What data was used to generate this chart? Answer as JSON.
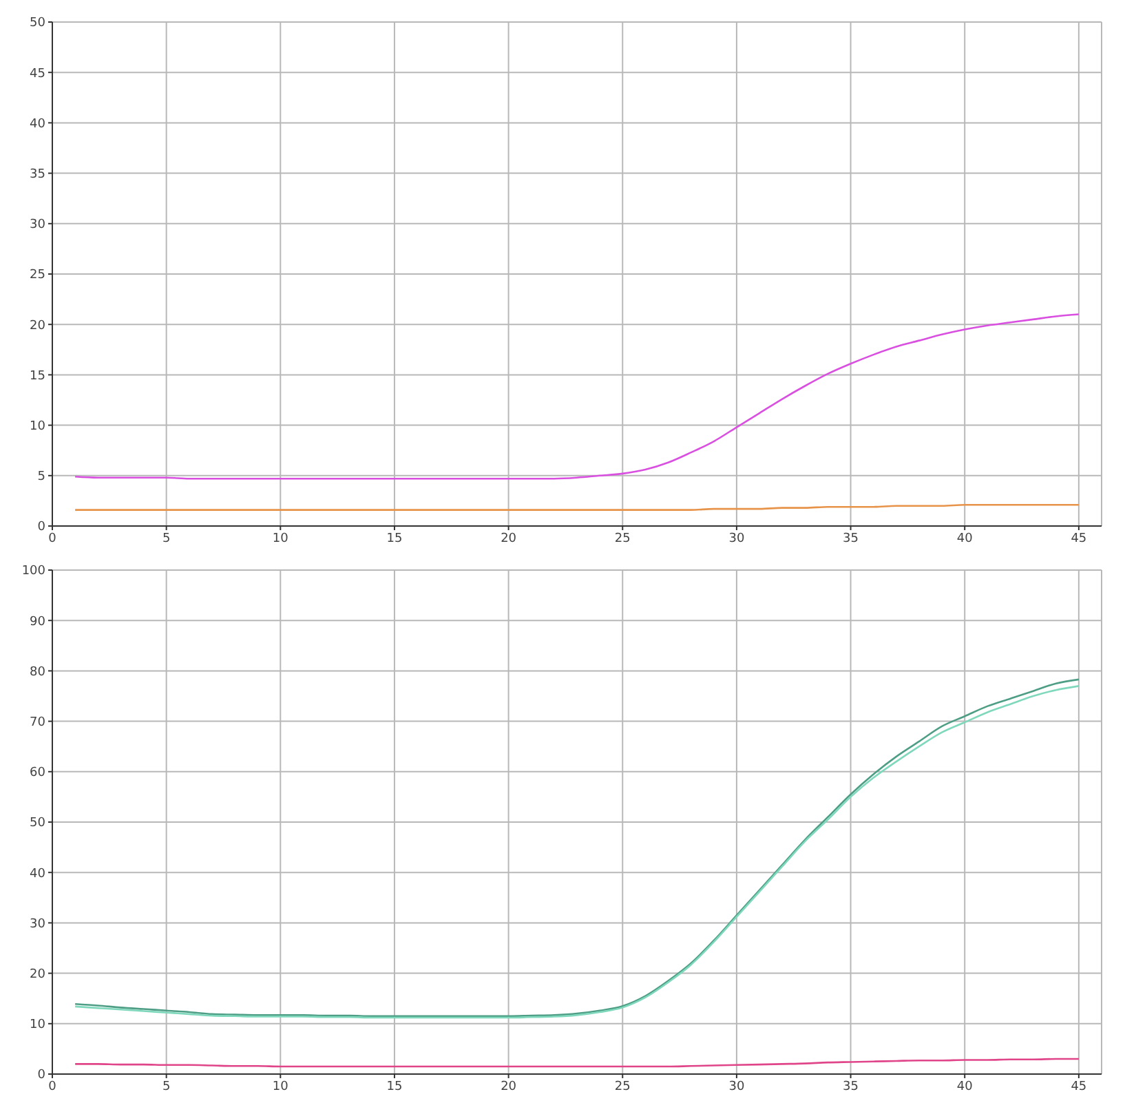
{
  "chart_data": [
    {
      "type": "line",
      "x": [
        1,
        2,
        3,
        4,
        5,
        6,
        7,
        8,
        9,
        10,
        11,
        12,
        13,
        14,
        15,
        16,
        17,
        18,
        19,
        20,
        21,
        22,
        23,
        24,
        25,
        26,
        27,
        28,
        29,
        30,
        31,
        32,
        33,
        34,
        35,
        36,
        37,
        38,
        39,
        40,
        41,
        42,
        43,
        44,
        45
      ],
      "series": [
        {
          "color": "#d94fe0",
          "values": [
            4.9,
            4.8,
            4.8,
            4.8,
            4.8,
            4.7,
            4.7,
            4.7,
            4.7,
            4.7,
            4.7,
            4.7,
            4.7,
            4.7,
            4.7,
            4.7,
            4.7,
            4.7,
            4.7,
            4.7,
            4.7,
            4.7,
            4.8,
            5.0,
            5.2,
            5.6,
            6.3,
            7.3,
            8.4,
            9.8,
            11.2,
            12.6,
            13.9,
            15.1,
            16.1,
            17.0,
            17.8,
            18.4,
            19.0,
            19.5,
            19.9,
            20.2,
            20.5,
            20.8,
            21.0
          ]
        },
        {
          "color": "#e8934a",
          "values": [
            1.6,
            1.6,
            1.6,
            1.6,
            1.6,
            1.6,
            1.6,
            1.6,
            1.6,
            1.6,
            1.6,
            1.6,
            1.6,
            1.6,
            1.6,
            1.6,
            1.6,
            1.6,
            1.6,
            1.6,
            1.6,
            1.6,
            1.6,
            1.6,
            1.6,
            1.6,
            1.6,
            1.6,
            1.7,
            1.7,
            1.7,
            1.8,
            1.8,
            1.9,
            1.9,
            1.9,
            2.0,
            2.0,
            2.0,
            2.1,
            2.1,
            2.1,
            2.1,
            2.1,
            2.1
          ]
        }
      ],
      "xlim": [
        0,
        46
      ],
      "xticks": [
        0,
        5,
        10,
        15,
        20,
        25,
        30,
        35,
        40,
        45
      ],
      "ylim": [
        0,
        50
      ],
      "yticks": [
        0,
        5,
        10,
        15,
        20,
        25,
        30,
        35,
        40,
        45,
        50
      ],
      "grid": true,
      "legend": false,
      "marker": "none",
      "line_style": "solid"
    },
    {
      "type": "line",
      "x": [
        1,
        2,
        3,
        4,
        5,
        6,
        7,
        8,
        9,
        10,
        11,
        12,
        13,
        14,
        15,
        16,
        17,
        18,
        19,
        20,
        21,
        22,
        23,
        24,
        25,
        26,
        27,
        28,
        29,
        30,
        31,
        32,
        33,
        34,
        35,
        36,
        37,
        38,
        39,
        40,
        41,
        42,
        43,
        44,
        45
      ],
      "series": [
        {
          "color": "#4e9e86",
          "values": [
            13.9,
            13.6,
            13.2,
            12.9,
            12.6,
            12.3,
            11.9,
            11.8,
            11.7,
            11.7,
            11.7,
            11.6,
            11.6,
            11.5,
            11.5,
            11.5,
            11.5,
            11.5,
            11.5,
            11.5,
            11.6,
            11.7,
            12.0,
            12.6,
            13.5,
            15.5,
            18.5,
            22.0,
            26.5,
            31.5,
            36.5,
            41.5,
            46.5,
            51.0,
            55.5,
            59.5,
            63.0,
            66.0,
            69.0,
            71.0,
            73.0,
            74.5,
            76.0,
            77.5,
            78.3
          ]
        },
        {
          "color": "#7fd8bc",
          "values": [
            13.4,
            13.1,
            12.8,
            12.5,
            12.2,
            11.9,
            11.6,
            11.5,
            11.4,
            11.4,
            11.4,
            11.3,
            11.3,
            11.2,
            11.2,
            11.2,
            11.2,
            11.2,
            11.2,
            11.2,
            11.3,
            11.4,
            11.7,
            12.3,
            13.2,
            15.2,
            18.2,
            21.7,
            26.2,
            31.2,
            36.2,
            41.2,
            46.2,
            50.5,
            55.0,
            58.8,
            62.0,
            65.0,
            67.8,
            69.8,
            71.8,
            73.4,
            75.0,
            76.2,
            77.0
          ]
        },
        {
          "color": "#e0458a",
          "values": [
            2.0,
            2.0,
            1.9,
            1.9,
            1.8,
            1.8,
            1.7,
            1.6,
            1.6,
            1.5,
            1.5,
            1.5,
            1.5,
            1.5,
            1.5,
            1.5,
            1.5,
            1.5,
            1.5,
            1.5,
            1.5,
            1.5,
            1.5,
            1.5,
            1.5,
            1.5,
            1.5,
            1.6,
            1.7,
            1.8,
            1.9,
            2.0,
            2.1,
            2.3,
            2.4,
            2.5,
            2.6,
            2.7,
            2.7,
            2.8,
            2.8,
            2.9,
            2.9,
            3.0,
            3.0
          ]
        }
      ],
      "xlim": [
        0,
        46
      ],
      "xticks": [
        0,
        5,
        10,
        15,
        20,
        25,
        30,
        35,
        40,
        45
      ],
      "ylim": [
        0,
        100
      ],
      "yticks": [
        0,
        10,
        20,
        30,
        40,
        50,
        60,
        70,
        80,
        90,
        100
      ],
      "grid": true,
      "legend": false,
      "marker": "none",
      "line_style": "solid"
    }
  ]
}
